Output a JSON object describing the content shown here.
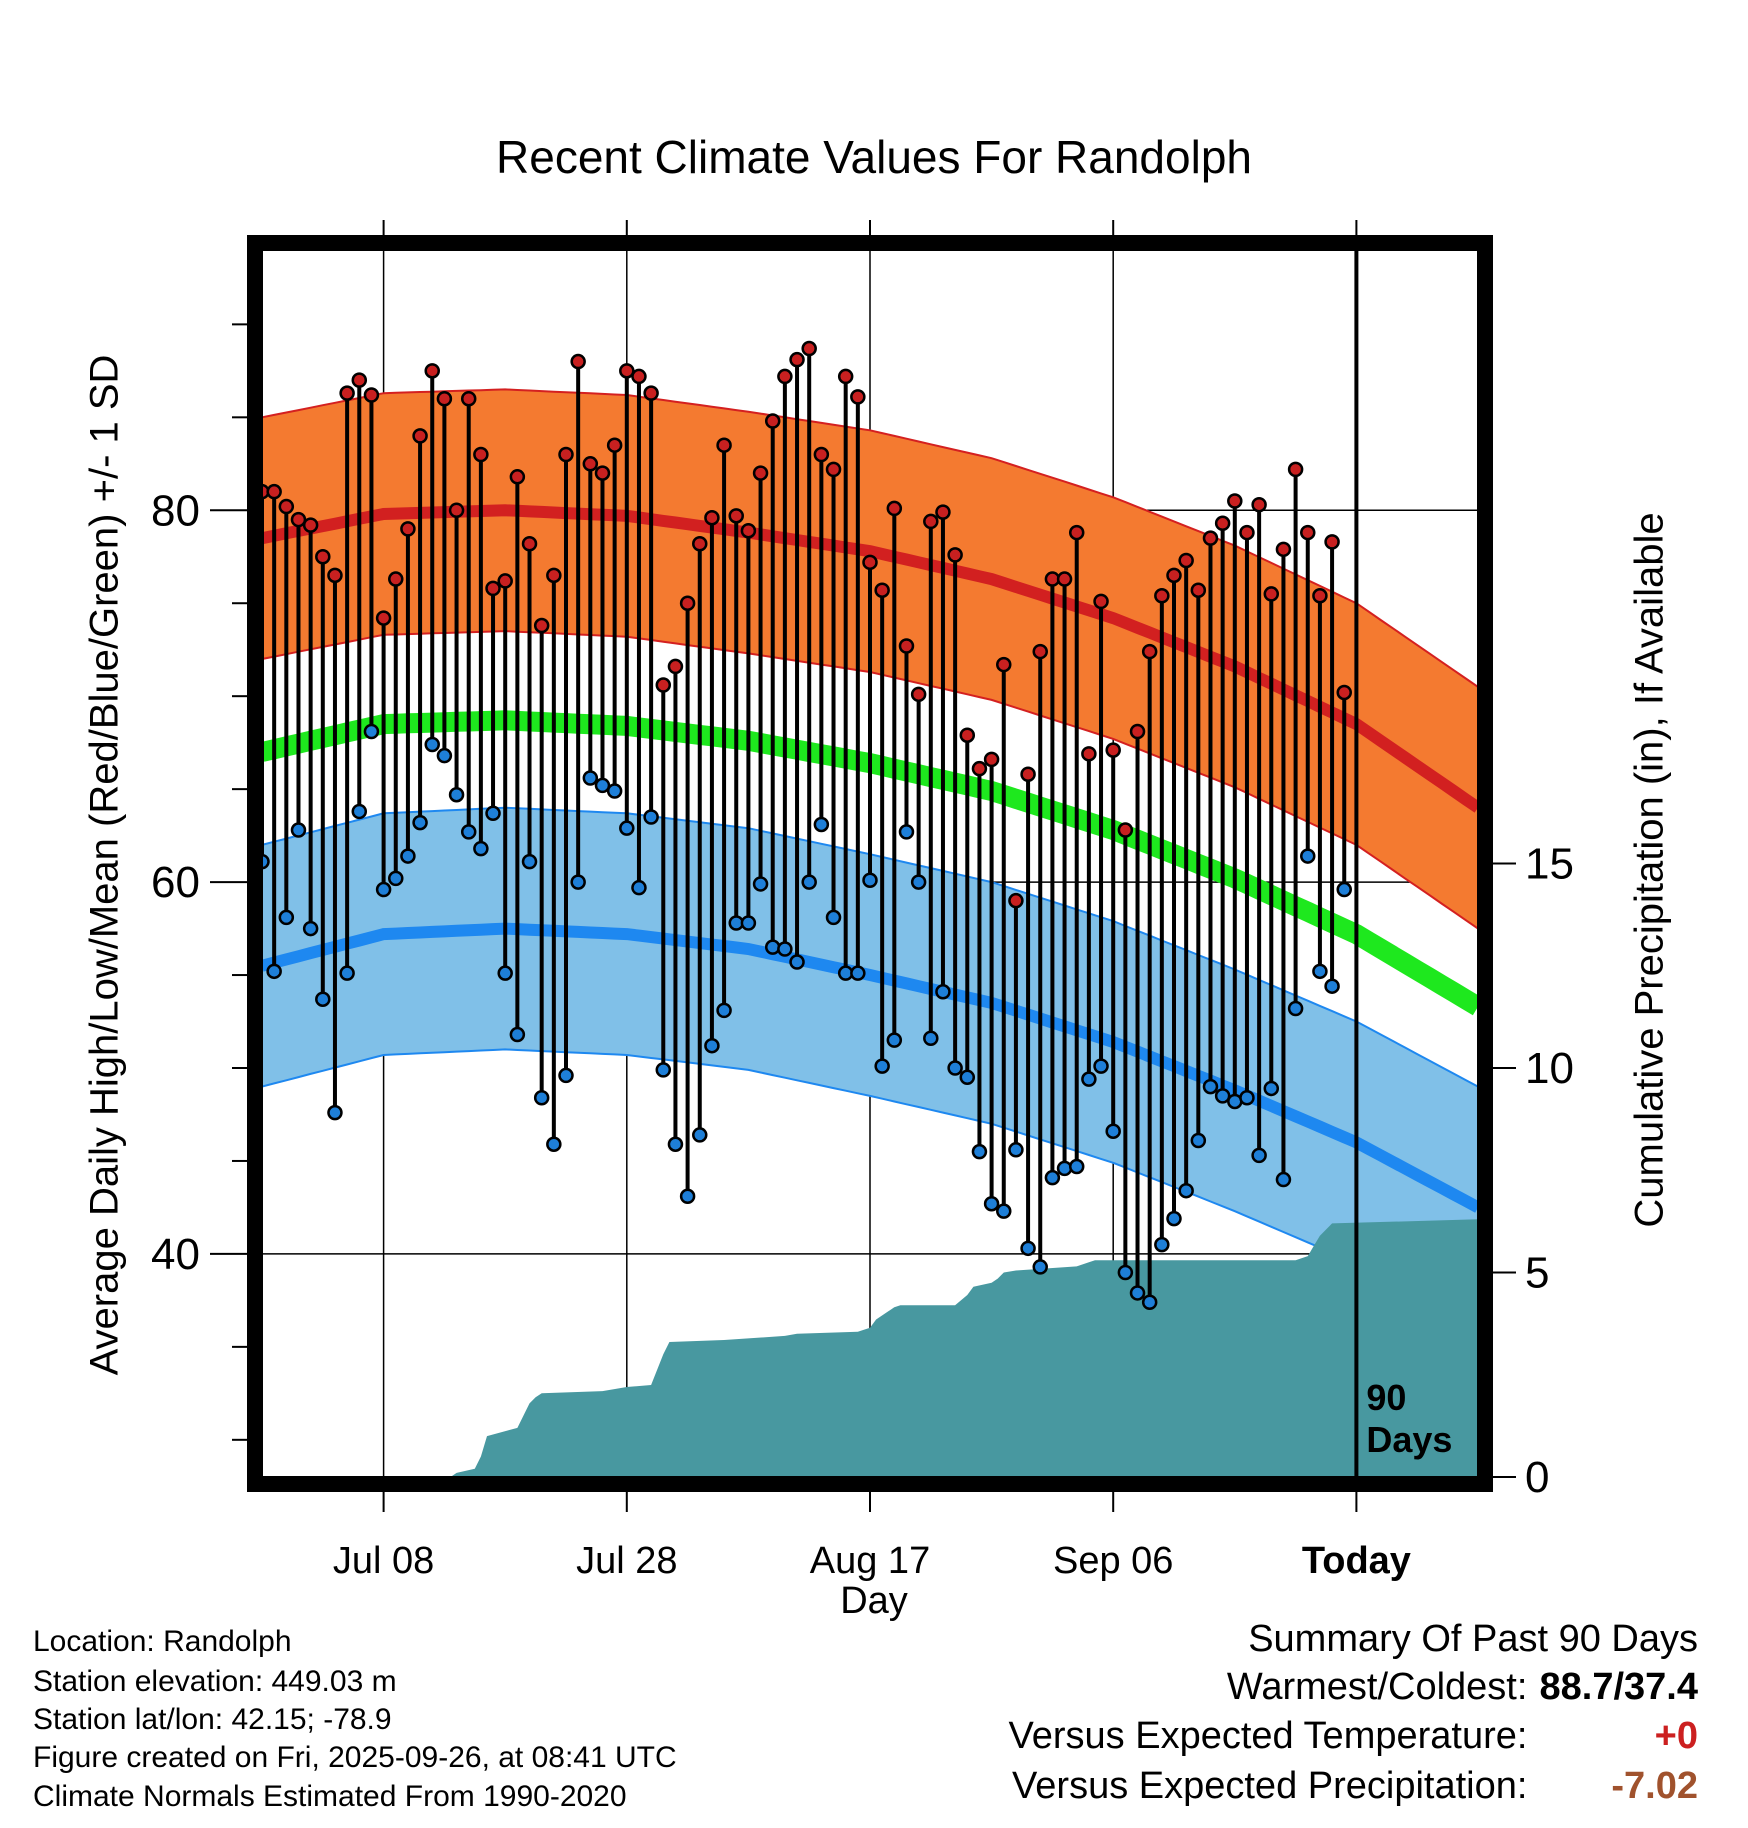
{
  "chart_data": {
    "type": "line",
    "title": "Recent Climate Values For Randolph",
    "ylabel": "Average Daily High/Low/Mean (Red/Blue/Green) +/- 1 SD",
    "y2label": "Cumulative Precipitation (in), If Available",
    "xlabel": "Day",
    "ylim": [
      28,
      94
    ],
    "y_ticks": [
      "40",
      "60",
      "80"
    ],
    "y2lim": [
      0,
      30
    ],
    "y2_ticks": [
      "0",
      "5",
      "10",
      "15"
    ],
    "x_range_days": [
      0,
      100
    ],
    "x_ticks": [
      {
        "day": 10,
        "label": "Jul 08"
      },
      {
        "day": 30,
        "label": "Jul 28"
      },
      {
        "day": 50,
        "label": "Aug 17"
      },
      {
        "day": 70,
        "label": "Sep 06"
      },
      {
        "day": 90,
        "label": "Today"
      }
    ],
    "today_marker": {
      "day": 90,
      "label": "90 Days"
    },
    "normals": {
      "days": [
        0,
        10,
        20,
        30,
        40,
        50,
        60,
        70,
        80,
        90,
        100
      ],
      "high_mean": [
        78.5,
        79.8,
        80.0,
        79.7,
        78.8,
        77.8,
        76.3,
        74.2,
        71.6,
        68.5,
        64.0
      ],
      "high_sd": 6.5,
      "low_mean": [
        55.5,
        57.2,
        57.5,
        57.2,
        56.4,
        55.0,
        53.5,
        51.4,
        48.8,
        46.0,
        42.5
      ],
      "low_sd": 6.5,
      "avg_mean": [
        67.0,
        68.5,
        68.7,
        68.4,
        67.6,
        66.4,
        64.9,
        62.8,
        60.2,
        57.2,
        53.3
      ]
    },
    "series": [
      {
        "name": "Daily High",
        "color": "#d42020",
        "values": [
          81,
          81,
          80.2,
          79.5,
          79.2,
          77.5,
          76.5,
          86.3,
          87,
          86.2,
          74.2,
          76.3,
          79,
          84,
          87.5,
          86,
          80,
          86,
          83,
          75.8,
          76.2,
          81.8,
          78.2,
          73.8,
          76.5,
          83,
          88,
          82.5,
          82,
          83.5,
          87.5,
          87.2,
          86.3,
          70.6,
          71.6,
          75,
          78.2,
          79.6,
          83.5,
          79.7,
          78.9,
          82,
          84.8,
          87.2,
          88.1,
          88.7,
          83,
          82.2,
          87.2,
          86.1,
          77.2,
          75.7,
          80.1,
          72.7,
          70.1,
          79.4,
          79.9,
          77.6,
          67.9,
          66.1,
          66.6,
          71.7,
          59,
          65.8,
          72.4,
          76.3,
          76.3,
          78.8,
          66.9,
          75.1,
          67.1,
          62.8,
          68.1,
          72.4,
          75.4,
          76.5,
          77.3,
          75.7,
          78.5,
          79.3,
          80.5,
          78.8,
          80.3,
          75.5,
          77.9,
          82.2,
          78.8,
          75.4,
          78.3,
          70.2
        ]
      },
      {
        "name": "Daily Low",
        "color": "#1e7fd8",
        "values": [
          61.1,
          55.2,
          58.1,
          62.8,
          57.5,
          53.7,
          47.6,
          55.1,
          63.8,
          68.1,
          59.6,
          60.2,
          61.4,
          63.2,
          67.4,
          66.8,
          64.7,
          62.7,
          61.8,
          63.7,
          55.1,
          51.8,
          61.1,
          48.4,
          45.9,
          49.6,
          60,
          65.6,
          65.2,
          64.9,
          62.9,
          59.7,
          63.5,
          49.9,
          45.9,
          43.1,
          46.4,
          51.2,
          53.1,
          57.8,
          57.8,
          59.9,
          56.5,
          56.4,
          55.7,
          60,
          63.1,
          58.1,
          55.1,
          55.1,
          60.1,
          50.1,
          51.5,
          62.7,
          60,
          51.6,
          54.1,
          50,
          49.5,
          45.5,
          42.7,
          42.3,
          45.6,
          40.3,
          39.3,
          44.1,
          44.6,
          44.7,
          49.4,
          50.1,
          46.6,
          39.0,
          37.9,
          37.4,
          40.5,
          41.9,
          43.4,
          46.1,
          49.0,
          48.5,
          48.2,
          48.4,
          45.3,
          48.9,
          44.0,
          53.2,
          61.4,
          55.2,
          54.4,
          59.6
        ]
      }
    ],
    "precipitation": {
      "name": "Cumulative Precipitation",
      "days": [
        0,
        15.5,
        16,
        17.5,
        18,
        18.5,
        21,
        22,
        22.5,
        23,
        28,
        30,
        32,
        33,
        33.5,
        38,
        43,
        44,
        49,
        50,
        50.5,
        52,
        52.5,
        57,
        58,
        58.5,
        60,
        60.5,
        61,
        62,
        67,
        68,
        68.5,
        85,
        86,
        86.5,
        87,
        88,
        100
      ],
      "values": [
        0,
        0,
        0.1,
        0.2,
        0.5,
        1.0,
        1.2,
        1.8,
        1.95,
        2.05,
        2.1,
        2.2,
        2.25,
        3.0,
        3.3,
        3.35,
        3.45,
        3.5,
        3.55,
        3.65,
        3.85,
        4.15,
        4.2,
        4.2,
        4.45,
        4.65,
        4.75,
        4.85,
        5.0,
        5.05,
        5.15,
        5.25,
        5.3,
        5.3,
        5.4,
        5.65,
        5.9,
        6.2,
        6.3
      ]
    }
  },
  "summary": {
    "heading": "Summary Of Past 90 Days",
    "warmest_coldest_label": "Warmest/Coldest:",
    "warmest_coldest_value": "88.7/37.4",
    "temp_label": "Versus Expected Temperature:",
    "temp_value": "+0",
    "temp_color": "#cc2020",
    "precip_label": "Versus Expected Precipitation:",
    "precip_value": "-7.02",
    "precip_color": "#a0522d"
  },
  "info": {
    "location": "Location: Randolph",
    "elevation": "Station elevation: 449.03 m",
    "latlon": "Station lat/lon: 42.15; -78.9",
    "created": "Figure created on Fri, 2025-09-26, at 08:41 UTC",
    "normals": "Climate Normals Estimated From 1990-2020"
  },
  "colors": {
    "high_band": "#f47a30",
    "high_line": "#d22020",
    "low_band": "#80c0e8",
    "low_line": "#1e88f0",
    "mean_line": "#1ee81e",
    "precip_fill": "#4898a0",
    "high_dot": "#c82020",
    "low_dot": "#1e7fd8"
  }
}
